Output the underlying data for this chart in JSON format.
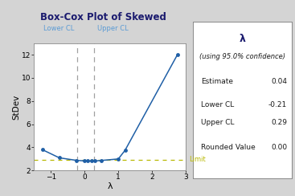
{
  "title": "Box-Cox Plot of Skewed",
  "xlabel": "λ",
  "ylabel": "StDev",
  "bg_color": "#d4d4d4",
  "plot_bg_color": "#ffffff",
  "line_color": "#1f5fa6",
  "dashed_color": "#a0a0a0",
  "limit_color": "#b8b800",
  "lower_cl_color": "#5b9bd5",
  "upper_cl_color": "#5b9bd5",
  "x_data": [
    -1.25,
    -0.75,
    -0.25,
    0.0,
    0.1,
    0.2,
    0.3,
    0.5,
    1.0,
    1.2,
    2.75
  ],
  "y_data": [
    3.8,
    3.1,
    2.88,
    2.83,
    2.82,
    2.82,
    2.82,
    2.87,
    3.0,
    3.75,
    12.0
  ],
  "lower_cl_x": -0.21,
  "upper_cl_x": 0.29,
  "limit_y": 2.93,
  "xlim": [
    -1.5,
    3.0
  ],
  "ylim": [
    2.0,
    13.0
  ],
  "xticks": [
    -1,
    0,
    1,
    2,
    3
  ],
  "yticks": [
    2,
    4,
    6,
    8,
    10,
    12
  ],
  "box_title": "λ",
  "box_subtitle": "(using 95.0% confidence)",
  "box_estimate_label": "Estimate",
  "box_estimate_val": "0.04",
  "box_lower_label": "Lower CL",
  "box_lower_val": "-0.21",
  "box_upper_label": "Upper CL",
  "box_upper_val": "0.29",
  "box_rounded_label": "Rounded Value",
  "box_rounded_val": "0.00",
  "title_color": "#1a1a6e",
  "text_color": "#1a1a1a"
}
